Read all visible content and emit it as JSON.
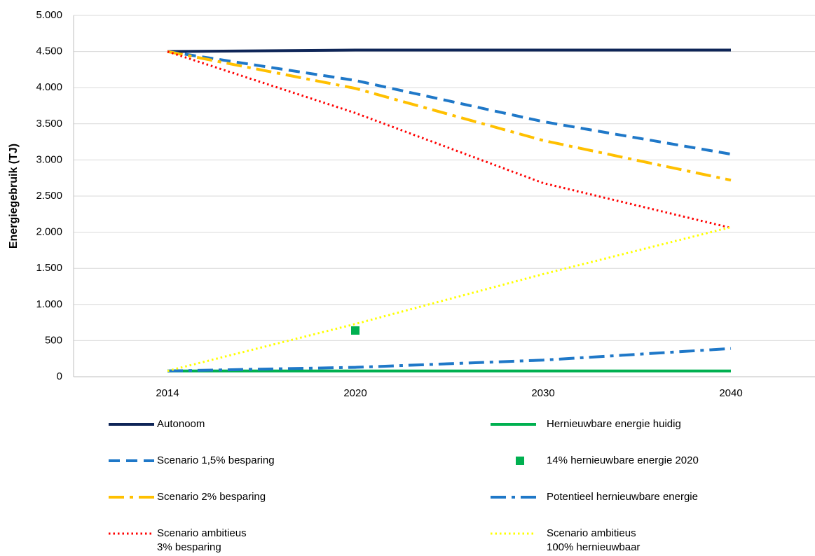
{
  "chart_data": {
    "type": "line",
    "y_label": "Energiegebruik (TJ)",
    "categories": [
      "2014",
      "2020",
      "2030",
      "2040"
    ],
    "ylim": [
      0,
      5000
    ],
    "yticks": [
      0,
      500,
      {
        "value": 1000,
        "label": "1.000"
      },
      {
        "value": 1500,
        "label": "1.500"
      },
      {
        "value": 2000,
        "label": "2.000"
      },
      {
        "value": 2500,
        "label": "2.500"
      },
      {
        "value": 3000,
        "label": "3.000"
      },
      {
        "value": 3500,
        "label": "3.500"
      },
      {
        "value": 4000,
        "label": "4.000"
      },
      {
        "value": 4500,
        "label": "4.500"
      },
      {
        "value": 5000,
        "label": "5.000"
      }
    ],
    "grid": true,
    "series": [
      {
        "name": "Autonoom",
        "color": "#0e2557",
        "style": "solid",
        "values": [
          4500,
          4520,
          4520,
          4520
        ]
      },
      {
        "name": "Scenario 1,5% besparing",
        "color": "#1f78c8",
        "style": "dashed",
        "values": [
          4500,
          4100,
          3530,
          3080
        ]
      },
      {
        "name": "Scenario 2% besparing",
        "color": "#ffc000",
        "style": "dashdot",
        "values": [
          4500,
          3990,
          3270,
          2720
        ]
      },
      {
        "name": "Scenario ambitieus\n3% besparing",
        "color": "#ff0000",
        "style": "dotted",
        "values": [
          4500,
          3650,
          2680,
          2060
        ]
      },
      {
        "name": "Hernieuwbare energie huidig",
        "color": "#00b050",
        "style": "solid",
        "values": [
          80,
          80,
          80,
          80
        ]
      },
      {
        "name": "14% hernieuwbare energie 2020",
        "color": "#00b050",
        "style": "marker",
        "values": [
          null,
          640,
          null,
          null
        ]
      },
      {
        "name": "Potentieel hernieuwbare energie",
        "color": "#1f78c8",
        "style": "dashdot",
        "values": [
          80,
          130,
          230,
          390
        ]
      },
      {
        "name": "Scenario ambitieus\n100% hernieuwbaar",
        "color": "#ffff00",
        "style": "dotted",
        "values": [
          80,
          730,
          1420,
          2070
        ]
      }
    ]
  }
}
